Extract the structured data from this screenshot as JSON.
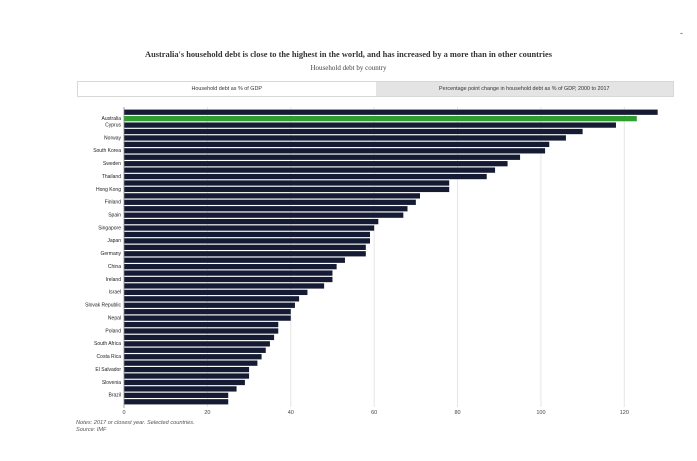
{
  "page": {
    "corner_mark": "-",
    "title": "Australia's household debt is close to the highest in the world, and has increased by a more than in other countries",
    "subtitle": "Household debt by country",
    "tabs": [
      {
        "label": "Household debt as % of GDP",
        "active": true
      },
      {
        "label": "Percentage point change in household debt as % of GDP, 2000 to 2017",
        "active": false
      }
    ],
    "notes": "Notes: 2017 or closest year. Selected countries.",
    "source": "Source: IMF"
  },
  "colors": {
    "bar": "#151b33",
    "highlight": "#2e9e2e",
    "grid": "#e6e6e6",
    "axis": "#888888"
  },
  "chart_data": {
    "type": "bar",
    "orientation": "horizontal",
    "title": "Australia's household debt is close to the highest in the world, and has increased by a more than in other countries",
    "subtitle": "Household debt by country",
    "highlight_category": "Australia",
    "xlim": [
      0,
      130
    ],
    "x_ticks": [
      0,
      20,
      40,
      60,
      80,
      100,
      120
    ],
    "grid": true,
    "categories": [
      "",
      "Australia",
      "Cyprus",
      "",
      "Norway",
      "",
      "South Korea",
      "",
      "Sweden",
      "",
      "Thailand",
      "",
      "Hong Kong",
      "",
      "Finland",
      "",
      "Spain",
      "",
      "Singapore",
      "",
      "Japan",
      "",
      "Germany",
      "",
      "China",
      "",
      "Ireland",
      "",
      "Israel",
      "",
      "Slovak Republic",
      "",
      "Nepal",
      "",
      "Poland",
      "",
      "South Africa",
      "",
      "Costa Rica",
      "",
      "El Salvador",
      "",
      "Slovenia",
      "",
      "Brazil",
      ""
    ],
    "values": [
      128,
      123,
      118,
      110,
      106,
      102,
      101,
      95,
      92,
      89,
      87,
      78,
      78,
      71,
      70,
      68,
      67,
      61,
      60,
      59,
      59,
      58,
      58,
      53,
      51,
      50,
      50,
      48,
      44,
      42,
      41,
      40,
      40,
      37,
      37,
      36,
      35,
      34,
      33,
      32,
      30,
      30,
      29,
      27,
      25,
      25
    ]
  }
}
